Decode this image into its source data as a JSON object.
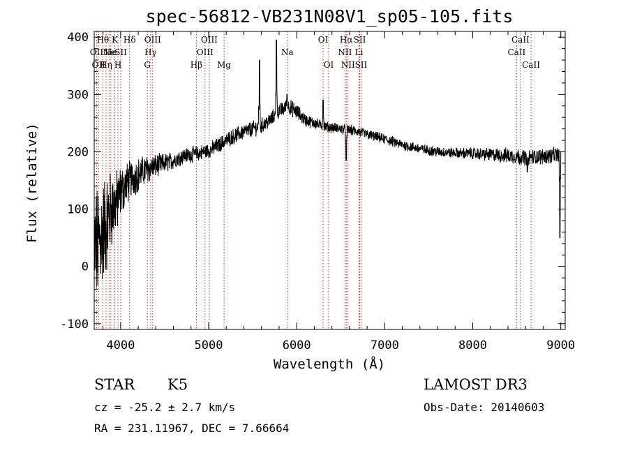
{
  "chart_data": {
    "type": "line",
    "title": "spec-56812-VB231N08V1_sp05-105.fits",
    "xlabel": "Wavelength (Å)",
    "ylabel": "Flux (relative)",
    "xlim": [
      3700,
      9050
    ],
    "ylim": [
      -110,
      410
    ],
    "x_ticks": [
      4000,
      5000,
      6000,
      7000,
      8000,
      9000
    ],
    "y_ticks": [
      -100,
      0,
      100,
      200,
      300,
      400
    ],
    "grid": false,
    "series": [
      {
        "name": "flux",
        "color": "#000000",
        "x": [
          3700,
          3750,
          3800,
          3850,
          3900,
          3950,
          4000,
          4050,
          4100,
          4150,
          4200,
          4250,
          4300,
          4400,
          4500,
          4600,
          4700,
          4800,
          4900,
          5000,
          5100,
          5200,
          5300,
          5400,
          5500,
          5600,
          5700,
          5800,
          5900,
          6000,
          6100,
          6200,
          6300,
          6400,
          6500,
          6600,
          6700,
          6800,
          7000,
          7200,
          7400,
          7600,
          7800,
          8000,
          8200,
          8400,
          8600,
          8800,
          9000
        ],
        "y": [
          30,
          40,
          60,
          80,
          100,
          110,
          130,
          140,
          150,
          155,
          160,
          165,
          170,
          175,
          180,
          185,
          192,
          195,
          198,
          202,
          210,
          220,
          228,
          235,
          240,
          245,
          255,
          270,
          280,
          270,
          255,
          250,
          245,
          242,
          240,
          238,
          235,
          230,
          222,
          212,
          205,
          200,
          198,
          197,
          195,
          193,
          190,
          192,
          195
        ],
        "noise": [
          90,
          90,
          85,
          75,
          60,
          50,
          40,
          35,
          30,
          28,
          26,
          24,
          22,
          18,
          15,
          13,
          12,
          12,
          12,
          12,
          12,
          12,
          12,
          12,
          12,
          12,
          12,
          12,
          12,
          12,
          10,
          9,
          8,
          8,
          8,
          8,
          8,
          8,
          8,
          8,
          8,
          8,
          8,
          9,
          10,
          12,
          12,
          12,
          12
        ],
        "spikes": [
          {
            "x": 5577,
            "y": 360
          },
          {
            "x": 5770,
            "y": 395
          },
          {
            "x": 5890,
            "y": 300
          },
          {
            "x": 6300,
            "y": 290
          },
          {
            "x": 6563,
            "y": 185
          },
          {
            "x": 8620,
            "y": 165
          },
          {
            "x": 8990,
            "y": 50
          }
        ]
      }
    ],
    "line_markers": [
      {
        "x": 3727,
        "label": "OII",
        "row": 2
      },
      {
        "x": 3750,
        "label": "OII",
        "row": 3
      },
      {
        "x": 3798,
        "label": "Hθ",
        "row": 1
      },
      {
        "x": 3835,
        "label": "Hη",
        "row": 3
      },
      {
        "x": 3869,
        "label": "Ne",
        "row": 2
      },
      {
        "x": 3889,
        "label": "He",
        "row": 2
      },
      {
        "x": 3934,
        "label": "K",
        "row": 1
      },
      {
        "x": 3970,
        "label": "H",
        "row": 3
      },
      {
        "x": 4001,
        "label": "SII",
        "row": 2
      },
      {
        "x": 4102,
        "label": "Hδ",
        "row": 1
      },
      {
        "x": 4304,
        "label": "G",
        "row": 3
      },
      {
        "x": 4341,
        "label": "Hγ",
        "row": 2
      },
      {
        "x": 4364,
        "label": "OIII",
        "row": 1
      },
      {
        "x": 4861,
        "label": "Hβ",
        "row": 3
      },
      {
        "x": 4959,
        "label": "OIII",
        "row": 2
      },
      {
        "x": 5007,
        "label": "OIII",
        "row": 1
      },
      {
        "x": 5175,
        "label": "Mg",
        "row": 3
      },
      {
        "x": 5894,
        "label": "Na",
        "row": 2
      },
      {
        "x": 6300,
        "label": "OI",
        "row": 1
      },
      {
        "x": 6363,
        "label": "OI",
        "row": 3
      },
      {
        "x": 6548,
        "label": "NII",
        "row": 2
      },
      {
        "x": 6563,
        "label": "Hα",
        "row": 1
      },
      {
        "x": 6583,
        "label": "NII",
        "row": 3
      },
      {
        "x": 6708,
        "label": "Li",
        "row": 2
      },
      {
        "x": 6716,
        "label": "SII",
        "row": 1
      },
      {
        "x": 6731,
        "label": "SII",
        "row": 3
      },
      {
        "x": 8498,
        "label": "CaII",
        "row": 2
      },
      {
        "x": 8542,
        "label": "CaII",
        "row": 1
      },
      {
        "x": 8662,
        "label": "CaII",
        "row": 3
      }
    ]
  },
  "info": {
    "object_class": "STAR",
    "subclass": "K5",
    "survey": "LAMOST DR3",
    "redshift": "cz = -25.2 ± 2.7 km/s",
    "obs_date": "Obs-Date: 20140603",
    "coords": "RA = 231.11967, DEC =    7.66664"
  }
}
